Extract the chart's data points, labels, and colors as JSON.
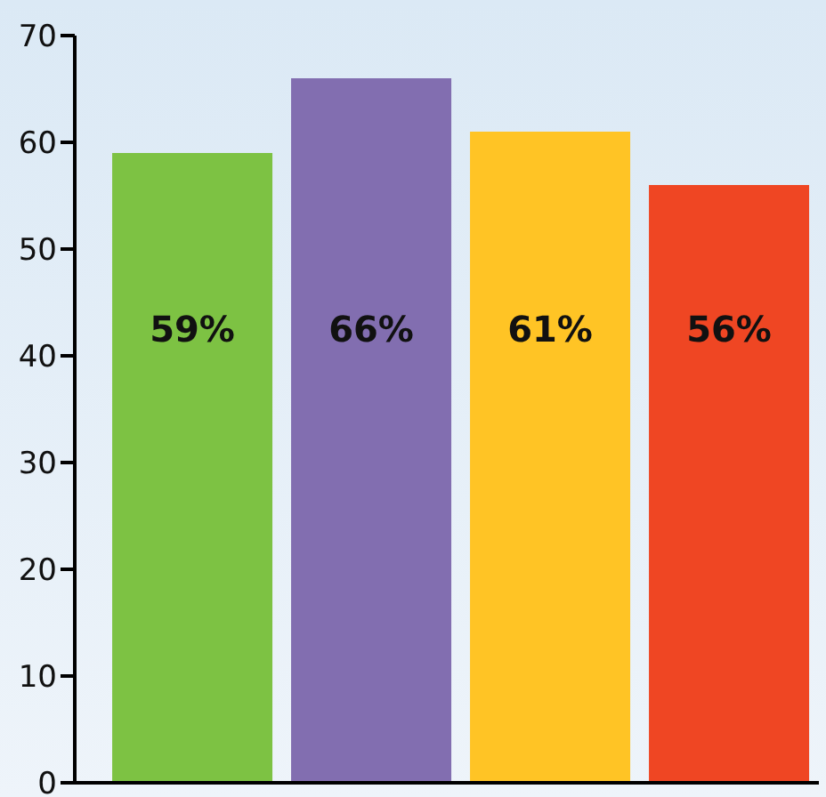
{
  "chart_data": {
    "type": "bar",
    "categories": [
      null,
      null,
      null,
      null
    ],
    "values": [
      59,
      66,
      61,
      56
    ],
    "colors": [
      "#7dc243",
      "#826eb0",
      "#ffc425",
      "#ef4623"
    ],
    "value_labels": [
      "59%",
      "66%",
      "61%",
      "56%"
    ],
    "ylim": [
      0,
      70
    ],
    "yticks": [
      0,
      10,
      20,
      30,
      40,
      50,
      60,
      70
    ],
    "grid": false,
    "legend": false
  }
}
